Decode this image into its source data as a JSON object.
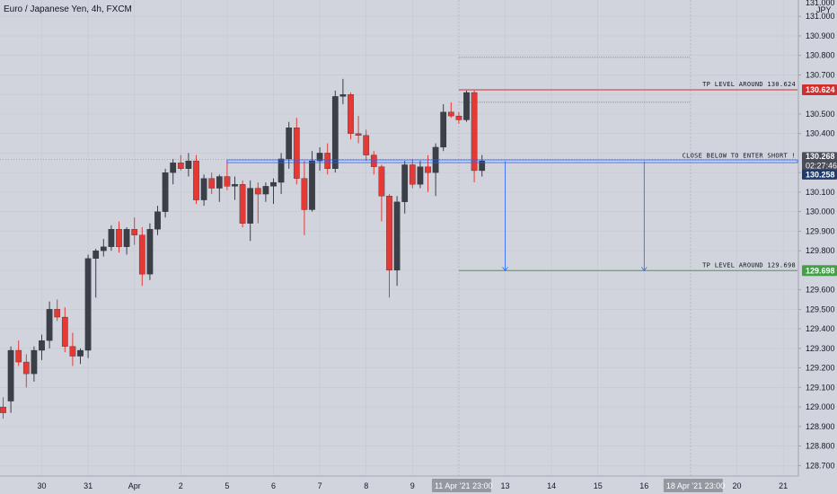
{
  "header": {
    "title": "Euro / Japanese Yen, 4h, FXCM"
  },
  "colors": {
    "background": "#d1d4dc",
    "bull": "#3b3f48",
    "bear": "#e53935",
    "grid": "#c4c8d0",
    "blue": "#2962ff",
    "red_level": "#d32f2f",
    "green_level": "#43a047",
    "dark_tag": "#4a4e59",
    "navy_tag": "#1e3a6e"
  },
  "chart_data": {
    "type": "candlestick",
    "symbol": "Euro / Japanese Yen",
    "timeframe": "4h",
    "source": "FXCM",
    "y_axis": {
      "unit": "JPY",
      "ylim": [
        128.66,
        131.07
      ],
      "tick_step": 0.1,
      "tick_labels": [
        "128.700",
        "128.800",
        "128.900",
        "129.000",
        "129.100",
        "129.200",
        "129.300",
        "129.400",
        "129.500",
        "129.600",
        "129.700",
        "129.800",
        "129.900",
        "130.000",
        "130.100",
        "130.200",
        "130.300",
        "130.400",
        "130.500",
        "130.600",
        "130.700",
        "130.800",
        "130.900",
        "131.000"
      ]
    },
    "x_axis": {
      "tick_labels": [
        {
          "label": "30",
          "bar": 5
        },
        {
          "label": "31",
          "bar": 11
        },
        {
          "label": "Apr",
          "bar": 17
        },
        {
          "label": "2",
          "bar": 23
        },
        {
          "label": "5",
          "bar": 29
        },
        {
          "label": "6",
          "bar": 35
        },
        {
          "label": "7",
          "bar": 41
        },
        {
          "label": "8",
          "bar": 47
        },
        {
          "label": "9",
          "bar": 53
        },
        {
          "label": "13",
          "bar": 65
        },
        {
          "label": "14",
          "bar": 71
        },
        {
          "label": "15",
          "bar": 77
        },
        {
          "label": "16",
          "bar": 83
        },
        {
          "label": "20",
          "bar": 95
        },
        {
          "label": "21",
          "bar": 101
        }
      ],
      "highlighted": [
        {
          "label": "11 Apr '21",
          "time": "23:00",
          "bar": 59
        },
        {
          "label": "18 Apr '21",
          "time": "23:00",
          "bar": 89
        }
      ]
    },
    "candles": [
      {
        "o": 129.0,
        "h": 129.05,
        "l": 128.94,
        "c": 128.97
      },
      {
        "o": 129.03,
        "h": 129.31,
        "l": 128.97,
        "c": 129.29
      },
      {
        "o": 129.29,
        "h": 129.34,
        "l": 129.21,
        "c": 129.23
      },
      {
        "o": 129.23,
        "h": 129.27,
        "l": 129.1,
        "c": 129.17
      },
      {
        "o": 129.17,
        "h": 129.31,
        "l": 129.13,
        "c": 129.29
      },
      {
        "o": 129.29,
        "h": 129.37,
        "l": 129.24,
        "c": 129.34
      },
      {
        "o": 129.34,
        "h": 129.54,
        "l": 129.3,
        "c": 129.5
      },
      {
        "o": 129.5,
        "h": 129.55,
        "l": 129.44,
        "c": 129.46
      },
      {
        "o": 129.46,
        "h": 129.51,
        "l": 129.28,
        "c": 129.31
      },
      {
        "o": 129.31,
        "h": 129.38,
        "l": 129.21,
        "c": 129.26
      },
      {
        "o": 129.26,
        "h": 129.3,
        "l": 129.22,
        "c": 129.29
      },
      {
        "o": 129.29,
        "h": 129.78,
        "l": 129.25,
        "c": 129.76
      },
      {
        "o": 129.76,
        "h": 129.81,
        "l": 129.56,
        "c": 129.8
      },
      {
        "o": 129.8,
        "h": 129.86,
        "l": 129.77,
        "c": 129.82
      },
      {
        "o": 129.82,
        "h": 129.93,
        "l": 129.8,
        "c": 129.91
      },
      {
        "o": 129.91,
        "h": 129.95,
        "l": 129.79,
        "c": 129.82
      },
      {
        "o": 129.82,
        "h": 129.92,
        "l": 129.78,
        "c": 129.91
      },
      {
        "o": 129.91,
        "h": 129.97,
        "l": 129.83,
        "c": 129.88
      },
      {
        "o": 129.88,
        "h": 129.92,
        "l": 129.62,
        "c": 129.68
      },
      {
        "o": 129.68,
        "h": 129.94,
        "l": 129.65,
        "c": 129.91
      },
      {
        "o": 129.91,
        "h": 130.03,
        "l": 129.88,
        "c": 130.0
      },
      {
        "o": 130.0,
        "h": 130.22,
        "l": 129.97,
        "c": 130.2
      },
      {
        "o": 130.2,
        "h": 130.27,
        "l": 130.14,
        "c": 130.25
      },
      {
        "o": 130.25,
        "h": 130.29,
        "l": 130.21,
        "c": 130.22
      },
      {
        "o": 130.22,
        "h": 130.3,
        "l": 130.18,
        "c": 130.26
      },
      {
        "o": 130.26,
        "h": 130.29,
        "l": 130.04,
        "c": 130.06
      },
      {
        "o": 130.06,
        "h": 130.19,
        "l": 130.03,
        "c": 130.17
      },
      {
        "o": 130.17,
        "h": 130.2,
        "l": 130.09,
        "c": 130.12
      },
      {
        "o": 130.12,
        "h": 130.19,
        "l": 130.05,
        "c": 130.18
      },
      {
        "o": 130.18,
        "h": 130.26,
        "l": 130.11,
        "c": 130.13
      },
      {
        "o": 130.13,
        "h": 130.18,
        "l": 130.06,
        "c": 130.14
      },
      {
        "o": 130.14,
        "h": 130.16,
        "l": 129.92,
        "c": 129.94
      },
      {
        "o": 129.94,
        "h": 130.16,
        "l": 129.85,
        "c": 130.12
      },
      {
        "o": 130.12,
        "h": 130.15,
        "l": 129.94,
        "c": 130.09
      },
      {
        "o": 130.09,
        "h": 130.15,
        "l": 130.05,
        "c": 130.13
      },
      {
        "o": 130.13,
        "h": 130.17,
        "l": 130.04,
        "c": 130.15
      },
      {
        "o": 130.15,
        "h": 130.3,
        "l": 130.09,
        "c": 130.27
      },
      {
        "o": 130.27,
        "h": 130.46,
        "l": 130.22,
        "c": 130.43
      },
      {
        "o": 130.43,
        "h": 130.48,
        "l": 130.14,
        "c": 130.17
      },
      {
        "o": 130.17,
        "h": 130.26,
        "l": 129.88,
        "c": 130.01
      },
      {
        "o": 130.01,
        "h": 130.31,
        "l": 130.0,
        "c": 130.26
      },
      {
        "o": 130.26,
        "h": 130.33,
        "l": 130.21,
        "c": 130.3
      },
      {
        "o": 130.3,
        "h": 130.35,
        "l": 130.19,
        "c": 130.22
      },
      {
        "o": 130.22,
        "h": 130.62,
        "l": 130.2,
        "c": 130.59
      },
      {
        "o": 130.59,
        "h": 130.68,
        "l": 130.55,
        "c": 130.6
      },
      {
        "o": 130.6,
        "h": 130.61,
        "l": 130.37,
        "c": 130.4
      },
      {
        "o": 130.4,
        "h": 130.49,
        "l": 130.35,
        "c": 130.39
      },
      {
        "o": 130.39,
        "h": 130.42,
        "l": 130.26,
        "c": 130.29
      },
      {
        "o": 130.29,
        "h": 130.31,
        "l": 130.19,
        "c": 130.23
      },
      {
        "o": 130.23,
        "h": 130.24,
        "l": 129.95,
        "c": 130.08
      },
      {
        "o": 130.08,
        "h": 130.09,
        "l": 129.56,
        "c": 129.7
      },
      {
        "o": 129.7,
        "h": 130.08,
        "l": 129.62,
        "c": 130.05
      },
      {
        "o": 130.05,
        "h": 130.26,
        "l": 129.99,
        "c": 130.24
      },
      {
        "o": 130.24,
        "h": 130.27,
        "l": 130.12,
        "c": 130.14
      },
      {
        "o": 130.14,
        "h": 130.26,
        "l": 130.12,
        "c": 130.23
      },
      {
        "o": 130.23,
        "h": 130.29,
        "l": 130.1,
        "c": 130.2
      },
      {
        "o": 130.2,
        "h": 130.35,
        "l": 130.08,
        "c": 130.33
      },
      {
        "o": 130.33,
        "h": 130.55,
        "l": 130.31,
        "c": 130.51
      },
      {
        "o": 130.51,
        "h": 130.56,
        "l": 130.48,
        "c": 130.49
      },
      {
        "o": 130.49,
        "h": 130.51,
        "l": 130.45,
        "c": 130.47
      },
      {
        "o": 130.47,
        "h": 130.62,
        "l": 130.46,
        "c": 130.61
      },
      {
        "o": 130.61,
        "h": 130.62,
        "l": 130.15,
        "c": 130.21
      },
      {
        "o": 130.21,
        "h": 130.29,
        "l": 130.18,
        "c": 130.26
      }
    ],
    "levels": [
      {
        "name": "tp-level-top",
        "label": "TP LEVEL AROUND 130.624",
        "price": 130.624,
        "tag": "130.624",
        "color": "#d32f2f",
        "from_bar": 59
      },
      {
        "name": "close-below-level",
        "label": "CLOSE BELOW TO ENTER SHORT !",
        "price": 130.258,
        "tag": "130.258",
        "color": "#2962ff",
        "from_bar": 29
      },
      {
        "name": "tp-level-bottom",
        "label": "TP LEVEL AROUND 129.698",
        "price": 129.698,
        "tag": "129.698",
        "color": "#43a047",
        "from_bar": 59
      }
    ],
    "current_price": {
      "price": 130.268,
      "tag": "130.268",
      "countdown": "02:27:46"
    },
    "axis_top_label": "131.000",
    "axis_unit_label": "JPY",
    "arrows": [
      {
        "bar": 65,
        "from": 130.258,
        "to": 129.698
      },
      {
        "bar": 83,
        "from": 130.258,
        "to": 129.698
      }
    ]
  }
}
